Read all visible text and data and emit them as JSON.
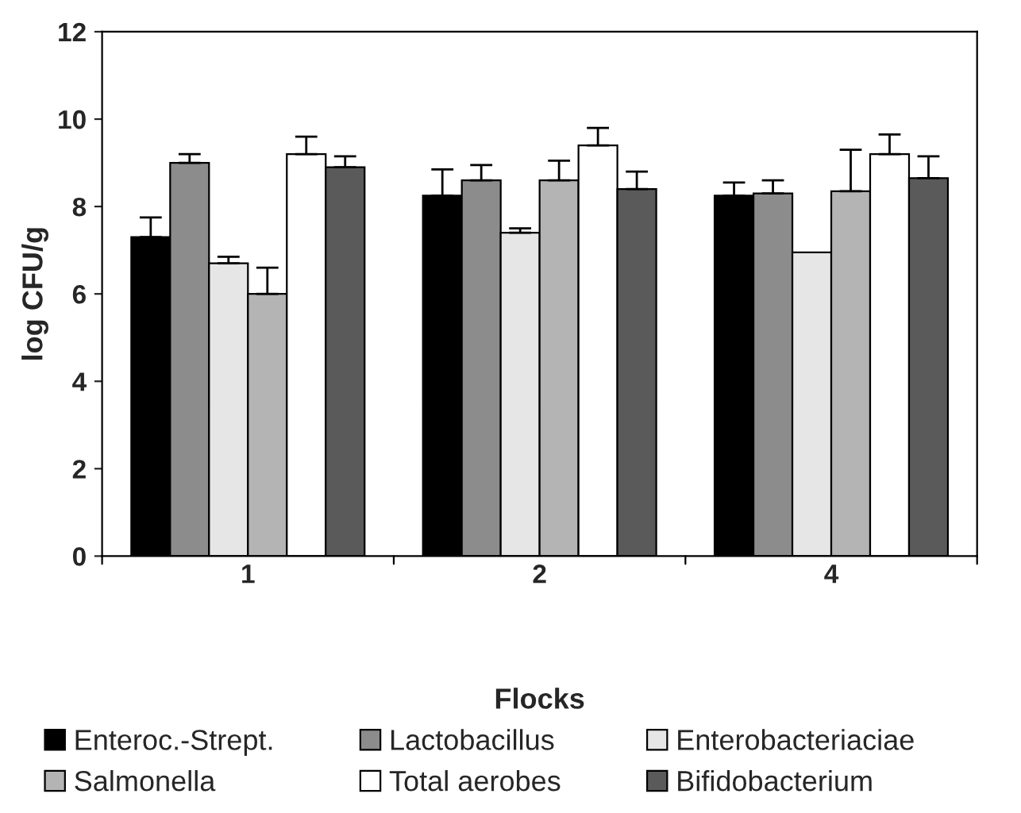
{
  "chart_data": {
    "type": "bar",
    "xlabel": "Flocks",
    "ylabel": "log CFU/g",
    "categories": [
      "1",
      "2",
      "4"
    ],
    "series": [
      {
        "name": "Enteroc.-Strept.",
        "color": "#000000",
        "values": [
          7.3,
          8.25,
          8.25
        ],
        "errors": [
          [
            7.3,
            7.75
          ],
          [
            8.25,
            8.85
          ],
          [
            8.25,
            8.55
          ]
        ]
      },
      {
        "name": "Lactobacillus",
        "color": "#8c8c8c",
        "values": [
          9.0,
          8.6,
          8.3
        ],
        "errors": [
          [
            9.0,
            9.2
          ],
          [
            8.6,
            8.95
          ],
          [
            8.3,
            8.6
          ]
        ]
      },
      {
        "name": "Enterobacteriaciae",
        "color": "#e6e6e6",
        "values": [
          6.7,
          7.4,
          6.95
        ],
        "errors": [
          [
            6.7,
            6.85
          ],
          [
            7.4,
            7.5
          ],
          null
        ]
      },
      {
        "name": "Salmonella",
        "color": "#b4b4b4",
        "values": [
          6.0,
          8.6,
          8.35
        ],
        "errors": [
          [
            6.0,
            6.6
          ],
          [
            8.6,
            9.05
          ],
          [
            8.35,
            9.3
          ]
        ]
      },
      {
        "name": "Total aerobes",
        "color": "#ffffff",
        "values": [
          9.2,
          9.4,
          9.2
        ],
        "errors": [
          [
            9.2,
            9.6
          ],
          [
            9.4,
            9.8
          ],
          [
            9.2,
            9.65
          ]
        ]
      },
      {
        "name": "Bifidobacterium",
        "color": "#5a5a5a",
        "values": [
          8.9,
          8.4,
          8.65
        ],
        "errors": [
          [
            8.9,
            9.15
          ],
          [
            8.4,
            8.8
          ],
          [
            8.65,
            9.15
          ]
        ]
      }
    ],
    "ylim": [
      0,
      12
    ],
    "yticks": [
      0,
      2,
      4,
      6,
      8,
      10,
      12
    ],
    "grid": false,
    "legend": "bottom"
  }
}
